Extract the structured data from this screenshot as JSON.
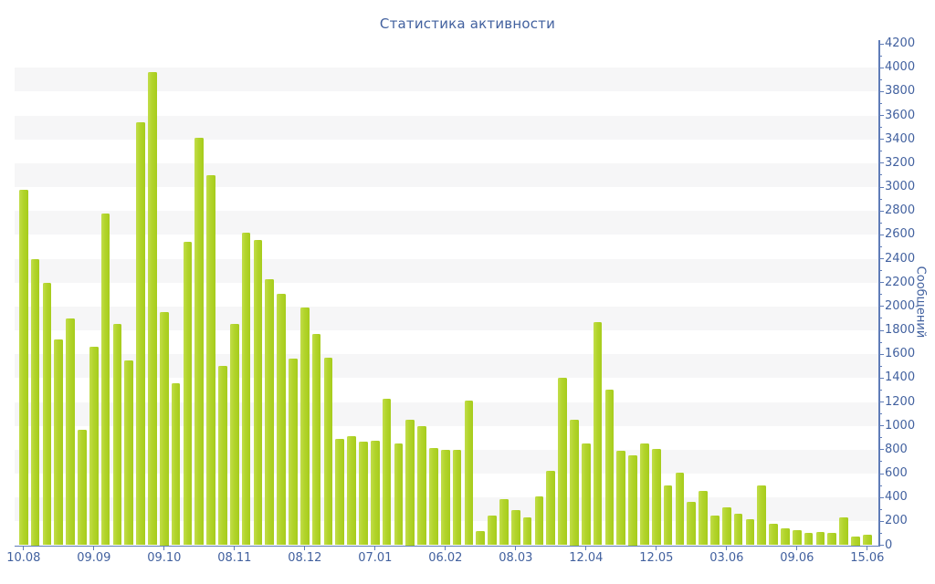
{
  "title": "Статистика активности",
  "chart_data": {
    "type": "bar",
    "title": "Статистика активности",
    "xlabel": "",
    "ylabel": "Сообщений",
    "ylim": [
      0,
      4200
    ],
    "ytick_major_step": 200,
    "ytick_minor_step": 100,
    "grid": "striped-horizontal-bands",
    "legend": false,
    "x_tick_labels": [
      "10.08",
      "09.09",
      "09.10",
      "08.11",
      "08.12",
      "07.01",
      "06.02",
      "08.03",
      "12.04",
      "12.05",
      "03.06",
      "09.06",
      "15.06"
    ],
    "x_tick_every_n_bars": 6,
    "values": [
      2980,
      2400,
      2200,
      1720,
      1900,
      965,
      1660,
      2780,
      1855,
      1545,
      3545,
      3965,
      1950,
      1355,
      2545,
      3410,
      3100,
      1505,
      1850,
      2615,
      2560,
      2230,
      2105,
      1565,
      1990,
      1770,
      1570,
      890,
      915,
      870,
      875,
      1225,
      850,
      1050,
      1000,
      815,
      795,
      800,
      1210,
      115,
      250,
      385,
      295,
      230,
      410,
      625,
      1405,
      1050,
      850,
      1870,
      1305,
      790,
      750,
      850,
      810,
      500,
      610,
      360,
      455,
      250,
      320,
      265,
      215,
      500,
      180,
      145,
      125,
      100,
      110,
      105,
      230,
      75,
      85
    ]
  },
  "colors": {
    "bar": "#b2d42b",
    "bar_edge_light": "#c2dd4a",
    "bar_edge_dark": "#a6cc1c",
    "axis": "#5f7cb8",
    "text": "#42619f",
    "band": "#f6f6f7",
    "background": "#ffffff"
  }
}
